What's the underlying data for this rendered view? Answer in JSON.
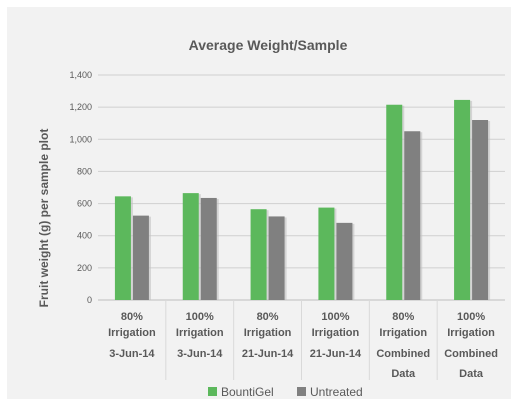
{
  "chart_data": {
    "type": "bar",
    "title": "Average Weight/Sample",
    "ylabel": "Fruit weight (g) per sample plot",
    "xlabel": "",
    "ylim": [
      0,
      1400
    ],
    "yticks": [
      "0",
      "200",
      "400",
      "600",
      "800",
      "1,000",
      "1,200",
      "1,400"
    ],
    "ytick_values": [
      0,
      200,
      400,
      600,
      800,
      1000,
      1200,
      1400
    ],
    "grid": true,
    "legend_position": "bottom",
    "categories": [
      {
        "line1": "80%",
        "line2": "Irrigation",
        "line3": "3-Jun-14",
        "line4": ""
      },
      {
        "line1": "100%",
        "line2": "Irrigation",
        "line3": "3-Jun-14",
        "line4": ""
      },
      {
        "line1": "80%",
        "line2": "Irrigation",
        "line3": "21-Jun-14",
        "line4": ""
      },
      {
        "line1": "100%",
        "line2": "Irrigation",
        "line3": "21-Jun-14",
        "line4": ""
      },
      {
        "line1": "80%",
        "line2": "Irrigation",
        "line3": "Combined",
        "line4": "Data"
      },
      {
        "line1": "100%",
        "line2": "Irrigation",
        "line3": "Combined",
        "line4": "Data"
      }
    ],
    "series": [
      {
        "name": "BountiGel",
        "color": "#5CB85C",
        "values": [
          645,
          665,
          565,
          575,
          1215,
          1245
        ]
      },
      {
        "name": "Untreated",
        "color": "#808080",
        "values": [
          525,
          635,
          520,
          480,
          1050,
          1120
        ]
      }
    ]
  }
}
